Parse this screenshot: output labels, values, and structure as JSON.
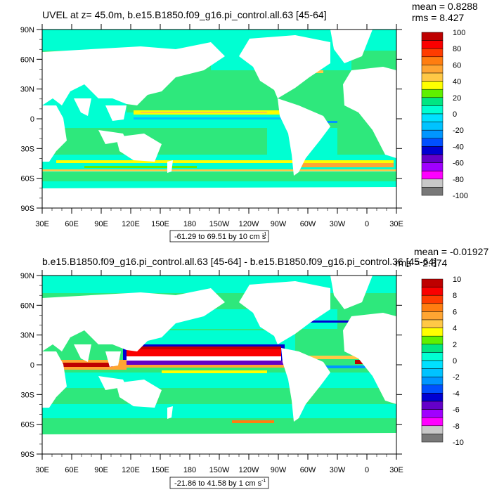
{
  "panels": [
    {
      "title": "UVEL at z=  45.0m, b.e15.B1850.f09_g16.pi_control.all.63 [45-64]",
      "stat_mean": "mean = 0.8288",
      "stat_rms": "rms = 8.427",
      "range_note": "-61.29 to 69.51 by 10 cm s",
      "range_unit_exp": "-1",
      "colorbar_labels": [
        "100",
        "80",
        "60",
        "40",
        "20",
        "0",
        "-20",
        "-40",
        "-60",
        "-80",
        "-100"
      ]
    },
    {
      "title": "b.e15.B1850.f09_g16.pi_control.all.63 [45-64] - b.e15.B1850.f09_g16.pi_control.36 [45-64]",
      "stat_mean": "mean = -0.01927",
      "stat_rms": "rms = 2.874",
      "range_note": "-21.86 to 41.58 by 1 cm s",
      "range_unit_exp": "-1",
      "colorbar_labels": [
        "10",
        "8",
        "6",
        "4",
        "2",
        "0",
        "-2",
        "-4",
        "-6",
        "-8",
        "-10"
      ]
    }
  ],
  "lon_labels": [
    "30E",
    "60E",
    "90E",
    "120E",
    "150E",
    "180",
    "150W",
    "120W",
    "90W",
    "60W",
    "30W",
    "0",
    "30E"
  ],
  "lat_labels": [
    "90N",
    "60N",
    "30N",
    "0",
    "30S",
    "60S",
    "90S"
  ],
  "colors": {
    "land": "#ffffff",
    "colorbar": [
      "#be0000",
      "#fa0000",
      "#ff3c00",
      "#ff7d10",
      "#ffa532",
      "#ffc846",
      "#ffff00",
      "#5ff000",
      "#00e682",
      "#00ffd2",
      "#00e1ff",
      "#00c3ff",
      "#0096ff",
      "#0050ff",
      "#0000d2",
      "#6400c8",
      "#a000ff",
      "#ff00ff",
      "#c8c8c8",
      "#787878"
    ],
    "ocean_base": "#2ee87c",
    "ocean_cyan": "#00ffd2"
  }
}
